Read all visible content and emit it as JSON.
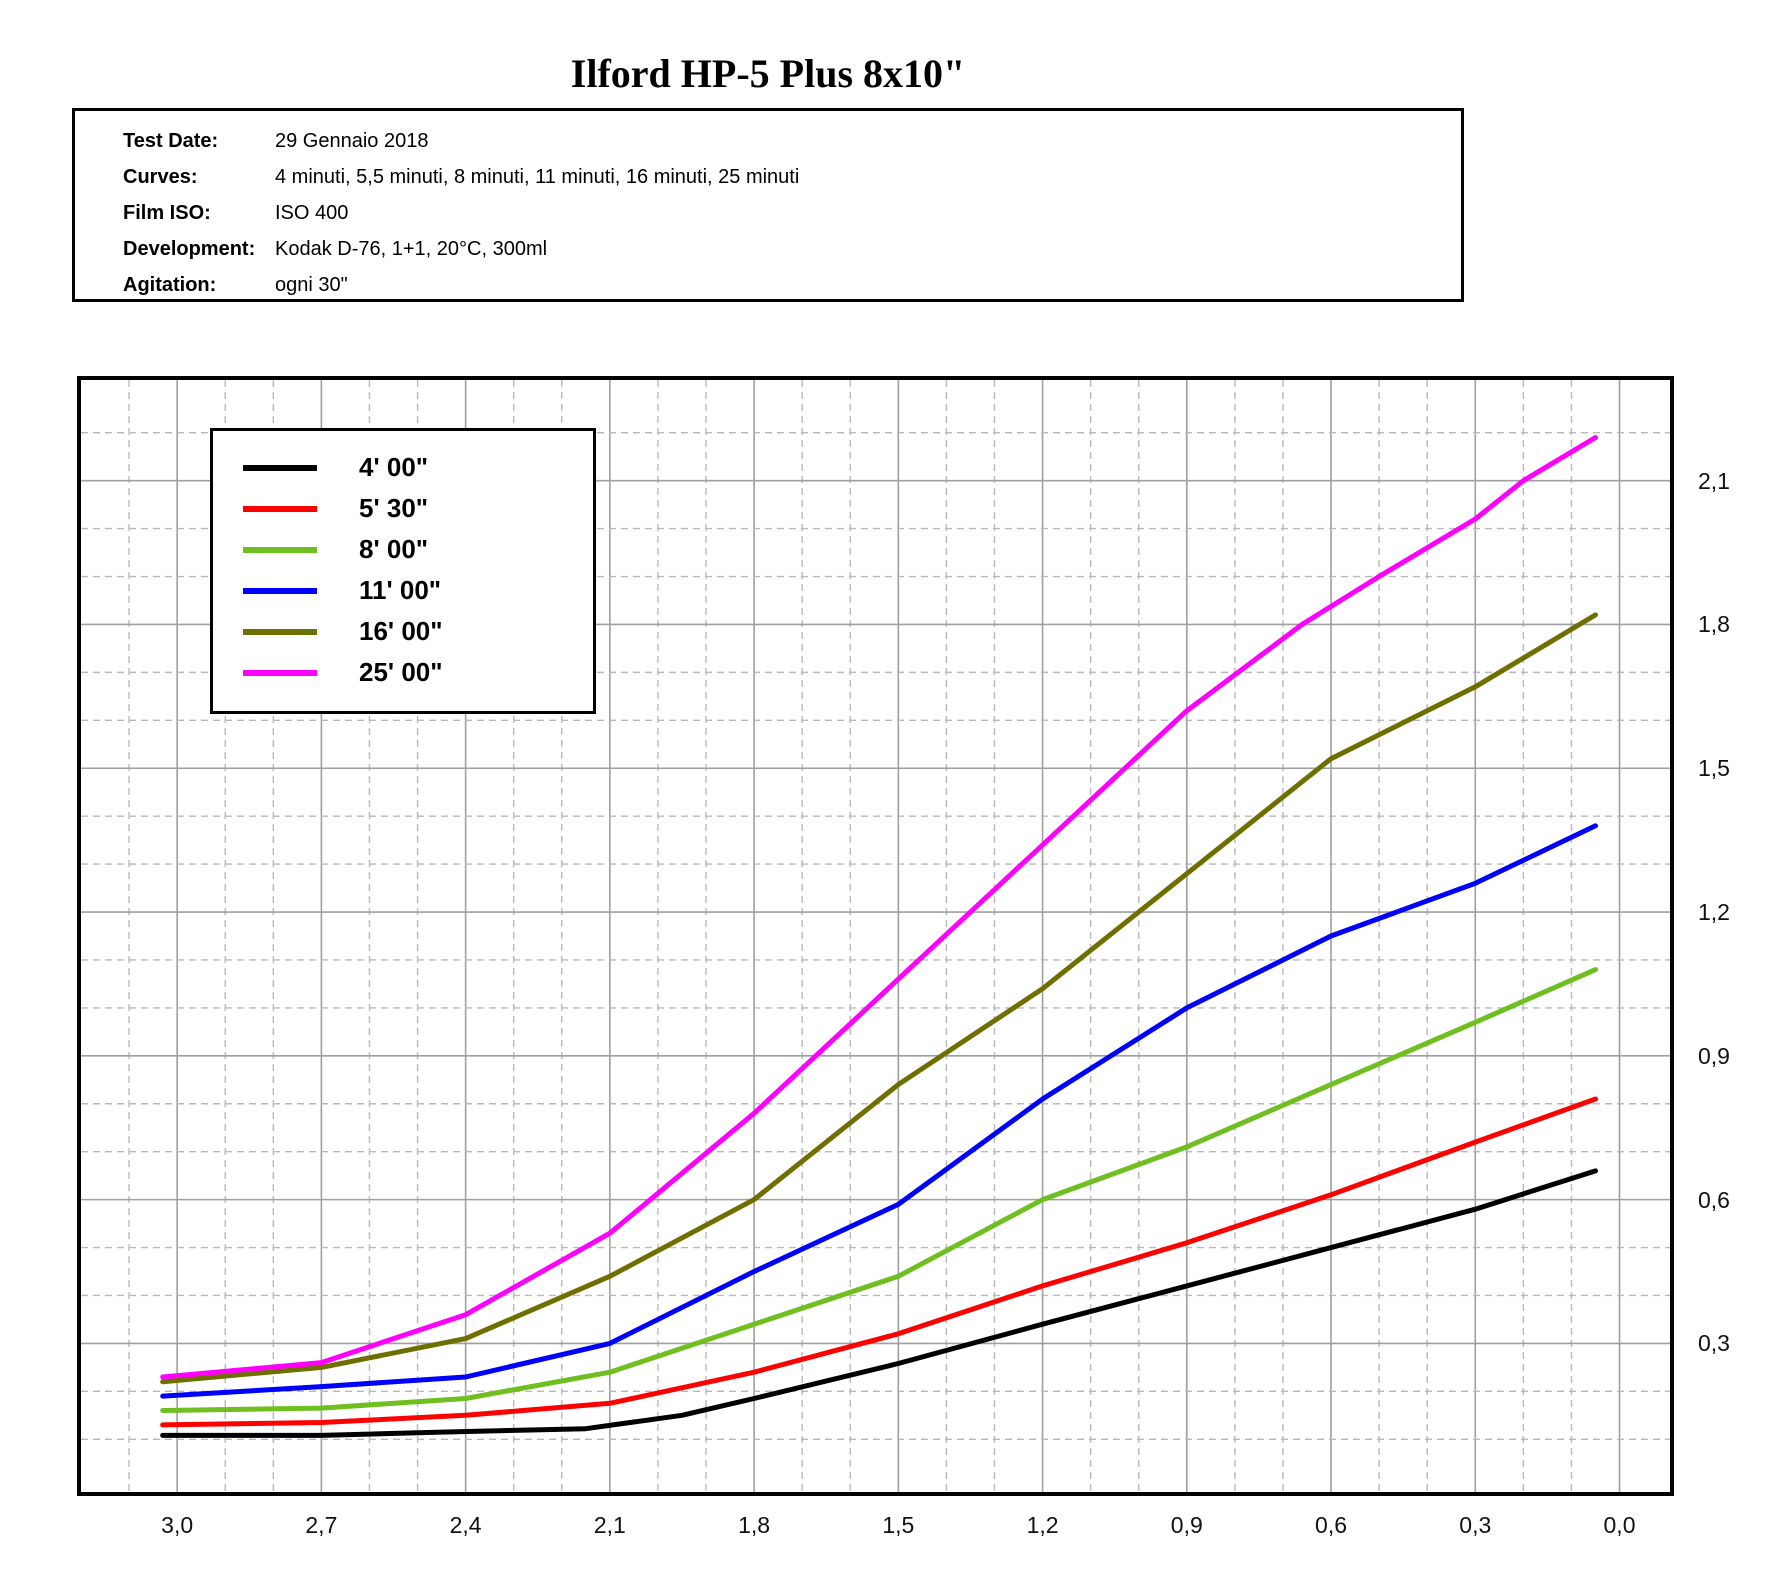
{
  "page": {
    "title": "Ilford HP-5 Plus 8x10\""
  },
  "info": {
    "rows": [
      {
        "label": "Test Date:",
        "value": "29 Gennaio 2018"
      },
      {
        "label": "Curves:",
        "value": "4 minuti, 5,5 minuti, 8 minuti, 11 minuti, 16 minuti, 25 minuti"
      },
      {
        "label": "Film ISO:",
        "value": "ISO 400"
      },
      {
        "label": "Development:",
        "value": "Kodak D-76, 1+1, 20°C, 300ml"
      },
      {
        "label": "Agitation:",
        "value": "ogni 30\""
      }
    ]
  },
  "chart_data": {
    "type": "line",
    "title": "",
    "xlabel": "",
    "ylabel": "",
    "grid": {
      "on": true,
      "minor_step": 0.1,
      "major_step": 0.3,
      "minor_color": "#b9b9b9",
      "major_color": "#9f9f9f"
    },
    "legend_position": "top-left",
    "x_axis": {
      "reversed": true,
      "range_left_to_right": [
        3.2,
        -0.105
      ],
      "tick_values": [
        3.0,
        2.7,
        2.4,
        2.1,
        1.8,
        1.5,
        1.2,
        0.9,
        0.6,
        0.3,
        0.0
      ],
      "tick_labels": [
        "3,0",
        "2,7",
        "2,4",
        "2,1",
        "1,8",
        "1,5",
        "1,2",
        "0,9",
        "0,6",
        "0,3",
        "0,0"
      ]
    },
    "y_axis": {
      "side": "right",
      "range_bottom_to_top": [
        -0.01,
        2.31
      ],
      "tick_values": [
        2.1,
        1.8,
        1.5,
        1.2,
        0.9,
        0.6,
        0.3
      ],
      "tick_labels": [
        "2,1",
        "1,8",
        "1,5",
        "1,2",
        "0,9",
        "0,6",
        "0,3"
      ]
    },
    "series": [
      {
        "id": "curve-4min",
        "name": "4' 00\"",
        "color": "#000000",
        "points": [
          [
            3.03,
            0.108
          ],
          [
            2.7,
            0.108
          ],
          [
            2.45,
            0.115
          ],
          [
            2.15,
            0.122
          ],
          [
            1.95,
            0.15
          ],
          [
            1.8,
            0.185
          ],
          [
            1.5,
            0.258
          ],
          [
            1.2,
            0.34
          ],
          [
            0.9,
            0.42
          ],
          [
            0.6,
            0.5
          ],
          [
            0.3,
            0.58
          ],
          [
            0.05,
            0.66
          ]
        ]
      },
      {
        "id": "curve-5m30",
        "name": "5' 30\"",
        "color": "#ff0000",
        "points": [
          [
            3.03,
            0.13
          ],
          [
            2.7,
            0.135
          ],
          [
            2.4,
            0.15
          ],
          [
            2.1,
            0.175
          ],
          [
            1.8,
            0.24
          ],
          [
            1.5,
            0.32
          ],
          [
            1.2,
            0.42
          ],
          [
            0.9,
            0.51
          ],
          [
            0.6,
            0.61
          ],
          [
            0.3,
            0.72
          ],
          [
            0.05,
            0.81
          ]
        ]
      },
      {
        "id": "curve-8min",
        "name": "8' 00\"",
        "color": "#70bf20",
        "points": [
          [
            3.03,
            0.16
          ],
          [
            2.7,
            0.165
          ],
          [
            2.4,
            0.185
          ],
          [
            2.1,
            0.24
          ],
          [
            1.8,
            0.34
          ],
          [
            1.5,
            0.44
          ],
          [
            1.2,
            0.6
          ],
          [
            0.9,
            0.71
          ],
          [
            0.6,
            0.84
          ],
          [
            0.3,
            0.97
          ],
          [
            0.05,
            1.08
          ]
        ]
      },
      {
        "id": "curve-11min",
        "name": "11' 00\"",
        "color": "#0000ff",
        "points": [
          [
            3.03,
            0.19
          ],
          [
            2.7,
            0.21
          ],
          [
            2.4,
            0.23
          ],
          [
            2.1,
            0.3
          ],
          [
            1.8,
            0.45
          ],
          [
            1.5,
            0.59
          ],
          [
            1.2,
            0.81
          ],
          [
            0.9,
            1.0
          ],
          [
            0.6,
            1.15
          ],
          [
            0.3,
            1.26
          ],
          [
            0.05,
            1.38
          ]
        ]
      },
      {
        "id": "curve-16min",
        "name": "16' 00\"",
        "color": "#6f6f00",
        "points": [
          [
            3.03,
            0.22
          ],
          [
            2.7,
            0.25
          ],
          [
            2.4,
            0.31
          ],
          [
            2.1,
            0.44
          ],
          [
            1.8,
            0.6
          ],
          [
            1.5,
            0.84
          ],
          [
            1.2,
            1.04
          ],
          [
            0.9,
            1.28
          ],
          [
            0.6,
            1.52
          ],
          [
            0.3,
            1.67
          ],
          [
            0.05,
            1.82
          ]
        ]
      },
      {
        "id": "curve-25min",
        "name": "25' 00\"",
        "color": "#ff00ff",
        "points": [
          [
            3.03,
            0.23
          ],
          [
            2.7,
            0.26
          ],
          [
            2.4,
            0.36
          ],
          [
            2.1,
            0.53
          ],
          [
            1.8,
            0.78
          ],
          [
            1.5,
            1.06
          ],
          [
            1.2,
            1.34
          ],
          [
            0.9,
            1.62
          ],
          [
            0.66,
            1.8
          ],
          [
            0.5,
            1.9
          ],
          [
            0.3,
            2.02
          ],
          [
            0.2,
            2.1
          ],
          [
            0.05,
            2.19
          ]
        ]
      }
    ]
  }
}
